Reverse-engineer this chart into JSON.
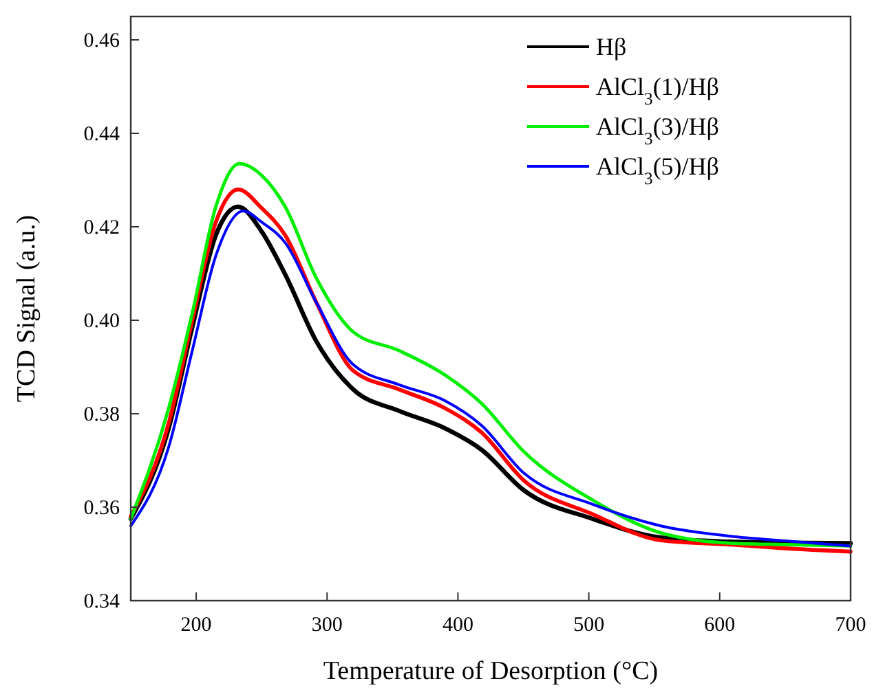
{
  "chart_data": {
    "type": "line",
    "xlabel": "Temperature of Desorption (°C)",
    "ylabel": "TCD Signal (a.u.)",
    "xlim": [
      150,
      700
    ],
    "xticks": [
      200,
      300,
      400,
      500,
      600,
      700
    ],
    "ylim": [
      0.34,
      0.465
    ],
    "yticks": [
      {
        "value": 0.34,
        "label": "0.34"
      },
      {
        "value": 0.36,
        "label": "0.36"
      },
      {
        "value": 0.38,
        "label": "0.38"
      },
      {
        "value": 0.4,
        "label": "0.40"
      },
      {
        "value": 0.42,
        "label": "0.42"
      },
      {
        "value": 0.44,
        "label": "0.44"
      },
      {
        "value": 0.46,
        "label": "0.46"
      }
    ],
    "legend": "top right",
    "grid": false,
    "marker": "none",
    "line_style": "solid",
    "series": [
      {
        "name": "Hβ",
        "color": "#000000",
        "x": [
          150,
          179,
          197,
          215,
          232,
          250,
          268,
          292,
          320,
          355,
          390,
          418,
          450,
          503,
          555,
          608,
          650,
          700
        ],
        "values": [
          0.3575,
          0.3769,
          0.3985,
          0.4182,
          0.4243,
          0.419,
          0.4098,
          0.3954,
          0.3852,
          0.3806,
          0.3769,
          0.3723,
          0.3637,
          0.3575,
          0.3535,
          0.3526,
          0.3524,
          0.3523
        ]
      },
      {
        "name": "AlCl$_{3}$(1)/Hβ",
        "color": "#ff0000",
        "x": [
          150,
          179,
          197,
          215,
          232,
          250,
          268,
          292,
          320,
          355,
          390,
          418,
          450,
          503,
          555,
          608,
          650,
          700
        ],
        "values": [
          0.358,
          0.378,
          0.4,
          0.421,
          0.428,
          0.424,
          0.4182,
          0.4037,
          0.3892,
          0.3852,
          0.3812,
          0.376,
          0.3658,
          0.3585,
          0.3529,
          0.352,
          0.3512,
          0.3505
        ]
      },
      {
        "name": "AlCl$_{3}$(3)/Hβ",
        "color": "#00ee00",
        "x": [
          150,
          179,
          197,
          215,
          233,
          250,
          268,
          292,
          320,
          355,
          390,
          418,
          450,
          503,
          555,
          608,
          650,
          700
        ],
        "values": [
          0.3575,
          0.3812,
          0.4015,
          0.4243,
          0.4335,
          0.431,
          0.4243,
          0.4089,
          0.3975,
          0.3935,
          0.3883,
          0.3822,
          0.372,
          0.3615,
          0.3545,
          0.3523,
          0.352,
          0.3517
        ]
      },
      {
        "name": "AlCl$_{3}$(5)/Hβ",
        "color": "#0000ff",
        "x": [
          150,
          179,
          197,
          215,
          236,
          250,
          268,
          292,
          320,
          355,
          390,
          418,
          450,
          503,
          555,
          608,
          650,
          700
        ],
        "values": [
          0.356,
          0.3729,
          0.3935,
          0.4138,
          0.4234,
          0.421,
          0.4166,
          0.4037,
          0.3905,
          0.3862,
          0.3828,
          0.3775,
          0.3674,
          0.3606,
          0.356,
          0.3538,
          0.3528,
          0.3517
        ]
      }
    ]
  }
}
